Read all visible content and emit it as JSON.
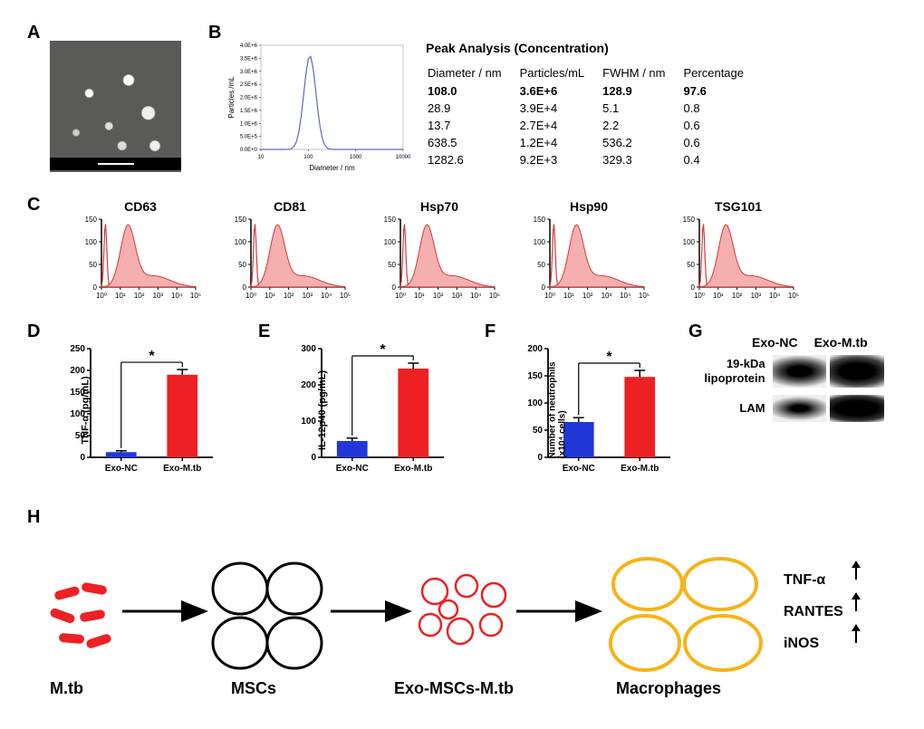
{
  "labels": {
    "A": "A",
    "B": "B",
    "C": "C",
    "D": "D",
    "E": "E",
    "F": "F",
    "G": "G",
    "H": "H"
  },
  "panelB": {
    "chart": {
      "type": "line",
      "xlabel": "Diameter / nm",
      "ylabel": "Particles /mL",
      "xscale": "log",
      "xlim": [
        10,
        10000
      ],
      "xticks": [
        10,
        100,
        1000,
        10000
      ],
      "ylim": [
        0,
        4000000.0
      ],
      "yticks_labels": [
        "0.0E+0",
        "5.0E+5",
        "1.0E+6",
        "1.5E+6",
        "2.0E+6",
        "2.5E+6",
        "3.0E+6",
        "3.5E+6",
        "4.0E+6"
      ],
      "line_color": "#5b6bbf",
      "peak_x": 108,
      "peak_y": 3600000.0,
      "label_fontsize": 8
    },
    "table": {
      "title": "Peak Analysis (Concentration)",
      "columns": [
        "Diameter / nm",
        "Particles/mL",
        "FWHM / nm",
        "Percentage"
      ],
      "rows": [
        [
          "108.0",
          "3.6E+6",
          "128.9",
          "97.6"
        ],
        [
          "28.9",
          "3.9E+4",
          "5.1",
          "0.8"
        ],
        [
          "13.7",
          "2.7E+4",
          "2.2",
          "0.6"
        ],
        [
          "638.5",
          "1.2E+4",
          "536.2",
          "0.6"
        ],
        [
          "1282.6",
          "9.2E+3",
          "329.3",
          "0.4"
        ]
      ],
      "bold_first_row": true
    }
  },
  "panelC": {
    "markers": [
      "CD63",
      "CD81",
      "Hsp70",
      "Hsp90",
      "TSG101"
    ],
    "fill_color": "#f4a6a6",
    "outline_color": "#d43a3a",
    "ylim": [
      0,
      150
    ],
    "yticks": [
      0,
      50,
      100,
      150
    ],
    "xlim": [
      0,
      5
    ],
    "xticks_labels": [
      "10⁰",
      "10¹",
      "10²",
      "10³",
      "10⁴",
      "10⁵"
    ],
    "label_fontsize": 8
  },
  "barCommon": {
    "categories": [
      "Exo-NC",
      "Exo-M.tb"
    ],
    "colors": [
      "#2137d8",
      "#ed2024"
    ],
    "error_color": "#000000",
    "sig_label": "*",
    "axis_color": "#000000",
    "label_fontsize": 11,
    "tick_fontsize": 10,
    "bar_width": 0.5
  },
  "panelD": {
    "ylabel": "TNF-α (pg/mL)",
    "ylim": [
      0,
      250
    ],
    "ytick_step": 50,
    "values": [
      12,
      190
    ],
    "errors": [
      3,
      12
    ]
  },
  "panelE": {
    "ylabel": "IL-12p40 (pg/mL)",
    "ylim": [
      0,
      300
    ],
    "ytick_step": 100,
    "values": [
      45,
      245
    ],
    "errors": [
      8,
      15
    ]
  },
  "panelF": {
    "ylabel": "Number of neutrophils\n(x10⁴ cells)",
    "ylim": [
      0,
      200
    ],
    "ytick_step": 50,
    "values": [
      65,
      148
    ],
    "errors": [
      8,
      12
    ]
  },
  "panelG": {
    "conditions": [
      "Exo-NC",
      "Exo-M.tb"
    ],
    "proteins": [
      "19-kDa lipoprotein",
      "LAM"
    ]
  },
  "panelH": {
    "items": [
      "M.tb",
      "MSCs",
      "Exo-MSCs-M.tb",
      "Macrophages"
    ],
    "outputs": [
      "TNF-α",
      "RANTES",
      "iNOS"
    ],
    "mtb_color": "#ed2024",
    "msc_color": "#000000",
    "exo_color": "#ed2024",
    "macrophage_color": "#f5b417",
    "label_fontsize": 18
  }
}
